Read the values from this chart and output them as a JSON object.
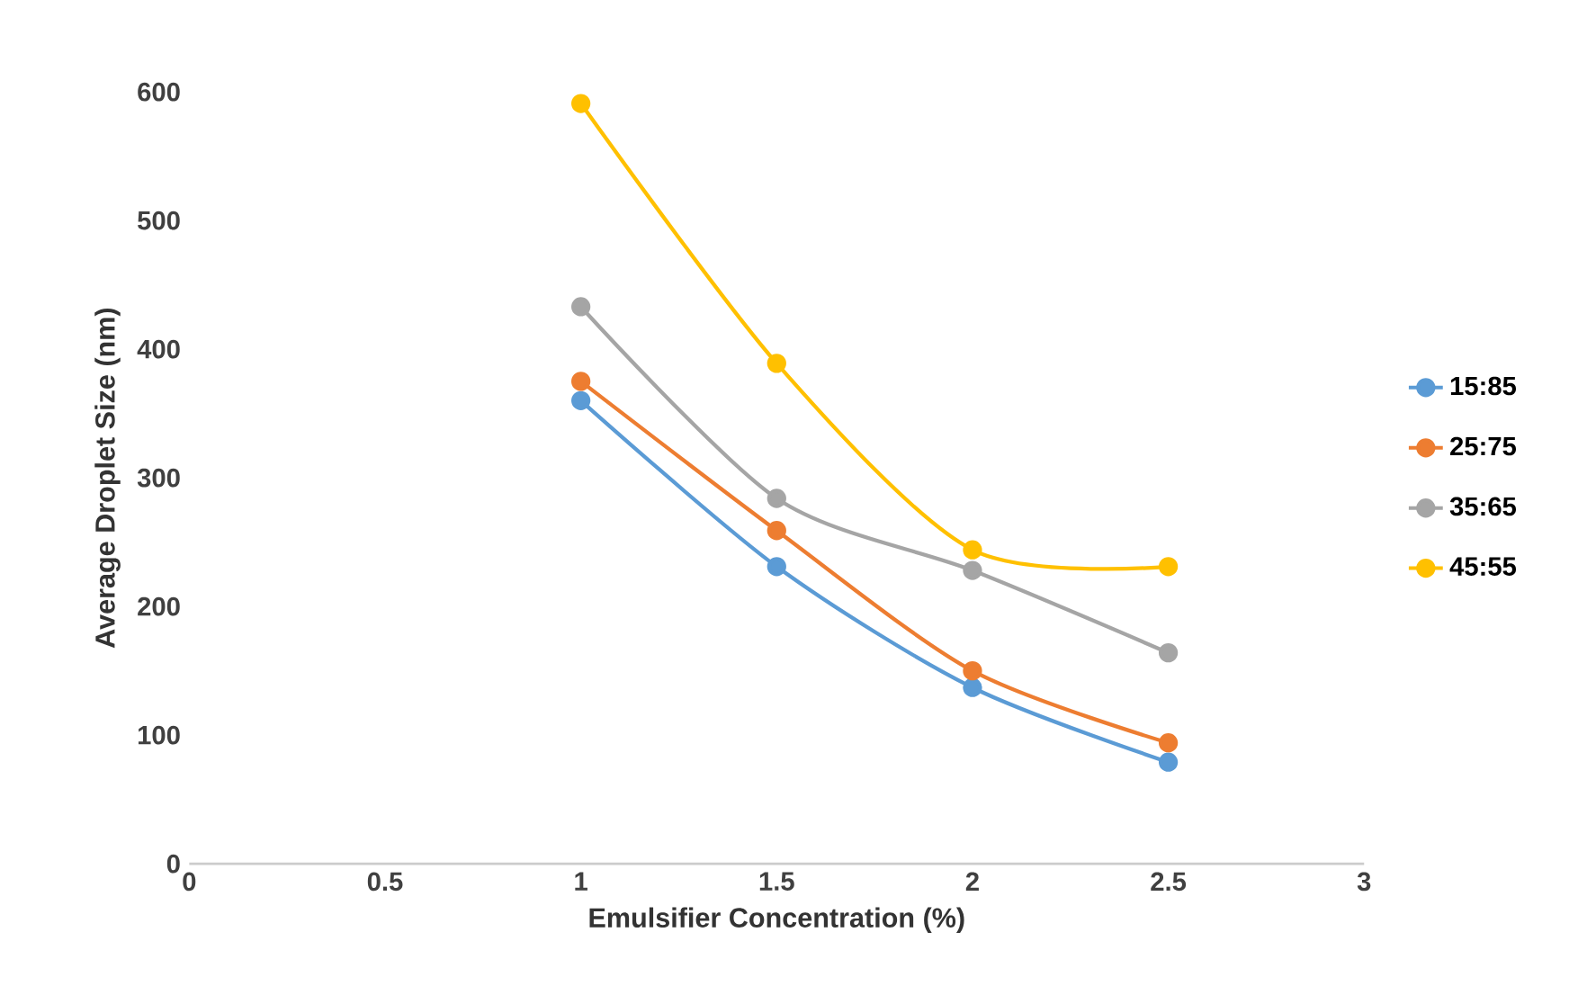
{
  "chart_data": {
    "type": "line",
    "xlabel": "Emulsifier Concentration (%)",
    "ylabel": "Average Droplet Size (nm)",
    "x": [
      1,
      1.5,
      2,
      2.5
    ],
    "series": [
      {
        "name": "15:85",
        "color": "#5b9bd5",
        "values": [
          360,
          231,
          137,
          79
        ]
      },
      {
        "name": "25:75",
        "color": "#ed7d31",
        "values": [
          375,
          259,
          150,
          94
        ]
      },
      {
        "name": "35:65",
        "color": "#a5a5a5",
        "values": [
          433,
          284,
          228,
          164
        ]
      },
      {
        "name": "45:55",
        "color": "#ffc000",
        "values": [
          591,
          389,
          244,
          231
        ]
      }
    ],
    "xlim": [
      0,
      3
    ],
    "ylim": [
      0,
      600
    ],
    "xticks": [
      0,
      0.5,
      1,
      1.5,
      2,
      2.5,
      3
    ],
    "yticks": [
      0,
      100,
      200,
      300,
      400,
      500,
      600
    ],
    "legend": "right",
    "marker": "circle",
    "line_style": "solid"
  }
}
